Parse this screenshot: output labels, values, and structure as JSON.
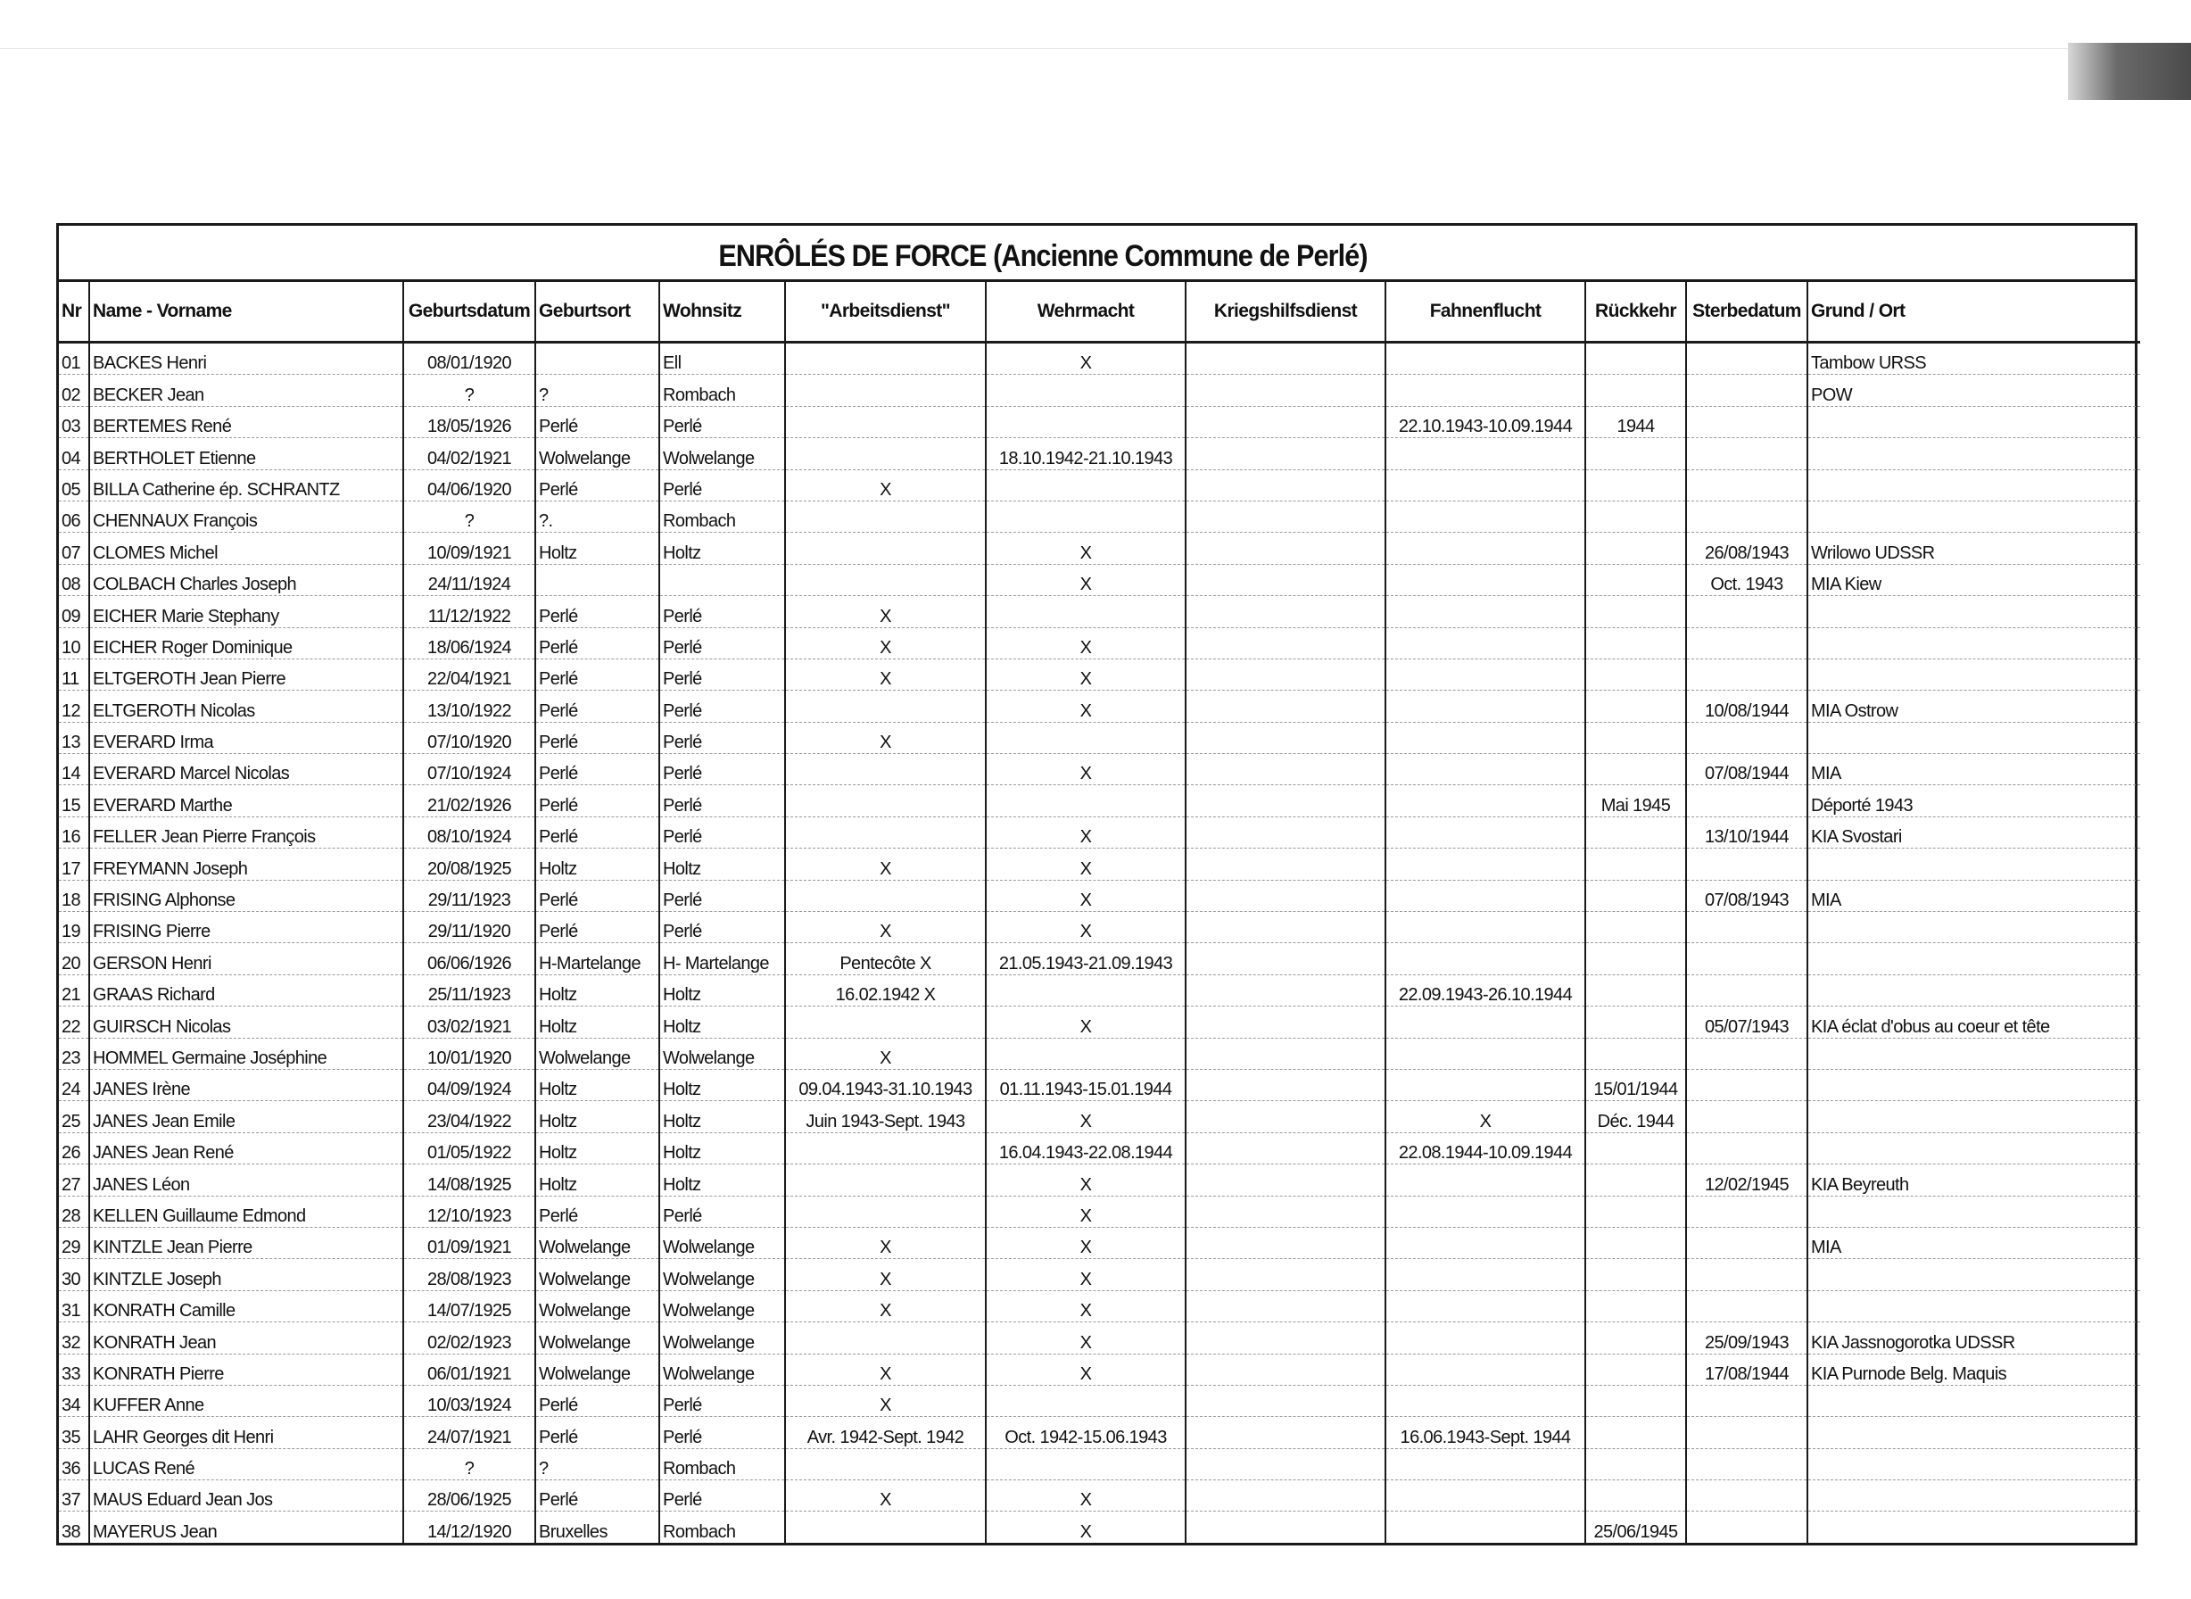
{
  "title": "ENRÔLÉS DE FORCE  (Ancienne Commune de Perlé)",
  "columns": [
    "Nr",
    "Name - Vorname",
    "Geburtsdatum",
    "Geburtsort",
    "Wohnsitz",
    "\"Arbeitsdienst\"",
    "Wehrmacht",
    "Kriegshilfsdienst",
    "Fahnenflucht",
    "Rückkehr",
    "Sterbedatum",
    "Grund / Ort"
  ],
  "rows": [
    [
      "01",
      "BACKES Henri",
      "08/01/1920",
      "",
      "Ell",
      "",
      "X",
      "",
      "",
      "",
      "",
      "Tambow URSS"
    ],
    [
      "02",
      "BECKER Jean",
      "?",
      "?",
      "Rombach",
      "",
      "",
      "",
      "",
      "",
      "",
      "POW"
    ],
    [
      "03",
      "BERTEMES René",
      "18/05/1926",
      "Perlé",
      "Perlé",
      "",
      "",
      "",
      "22.10.1943-10.09.1944",
      "1944",
      "",
      ""
    ],
    [
      "04",
      "BERTHOLET Etienne",
      "04/02/1921",
      "Wolwelange",
      "Wolwelange",
      "",
      "18.10.1942-21.10.1943",
      "",
      "",
      "",
      "",
      ""
    ],
    [
      "05",
      "BILLA Catherine ép. SCHRANTZ",
      "04/06/1920",
      "Perlé",
      "Perlé",
      "X",
      "",
      "",
      "",
      "",
      "",
      ""
    ],
    [
      "06",
      "CHENNAUX François",
      "?",
      "?.",
      "Rombach",
      "",
      "",
      "",
      "",
      "",
      "",
      ""
    ],
    [
      "07",
      "CLOMES Michel",
      "10/09/1921",
      "Holtz",
      "Holtz",
      "",
      "X",
      "",
      "",
      "",
      "26/08/1943",
      "Wrilowo UDSSR"
    ],
    [
      "08",
      "COLBACH Charles Joseph",
      "24/11/1924",
      "",
      "",
      "",
      "X",
      "",
      "",
      "",
      "Oct. 1943",
      "MIA Kiew"
    ],
    [
      "09",
      "EICHER Marie Stephany",
      "11/12/1922",
      "Perlé",
      "Perlé",
      "X",
      "",
      "",
      "",
      "",
      "",
      ""
    ],
    [
      "10",
      "EICHER Roger Dominique",
      "18/06/1924",
      "Perlé",
      "Perlé",
      "X",
      "X",
      "",
      "",
      "",
      "",
      ""
    ],
    [
      "11",
      "ELTGEROTH Jean Pierre",
      "22/04/1921",
      "Perlé",
      "Perlé",
      "X",
      "X",
      "",
      "",
      "",
      "",
      ""
    ],
    [
      "12",
      "ELTGEROTH Nicolas",
      "13/10/1922",
      "Perlé",
      "Perlé",
      "",
      "X",
      "",
      "",
      "",
      "10/08/1944",
      "MIA Ostrow"
    ],
    [
      "13",
      "EVERARD Irma",
      "07/10/1920",
      "Perlé",
      "Perlé",
      "X",
      "",
      "",
      "",
      "",
      "",
      ""
    ],
    [
      "14",
      "EVERARD Marcel Nicolas",
      "07/10/1924",
      "Perlé",
      "Perlé",
      "",
      "X",
      "",
      "",
      "",
      "07/08/1944",
      "MIA"
    ],
    [
      "15",
      "EVERARD Marthe",
      "21/02/1926",
      "Perlé",
      "Perlé",
      "",
      "",
      "",
      "",
      "Mai 1945",
      "",
      "Déporté 1943"
    ],
    [
      "16",
      "FELLER Jean Pierre François",
      "08/10/1924",
      "Perlé",
      "Perlé",
      "",
      "X",
      "",
      "",
      "",
      "13/10/1944",
      "KIA Svostari"
    ],
    [
      "17",
      "FREYMANN Joseph",
      "20/08/1925",
      "Holtz",
      "Holtz",
      "X",
      "X",
      "",
      "",
      "",
      "",
      ""
    ],
    [
      "18",
      "FRISING Alphonse",
      "29/11/1923",
      "Perlé",
      "Perlé",
      "",
      "X",
      "",
      "",
      "",
      "07/08/1943",
      "MIA"
    ],
    [
      "19",
      "FRISING Pierre",
      "29/11/1920",
      "Perlé",
      "Perlé",
      "X",
      "X",
      "",
      "",
      "",
      "",
      ""
    ],
    [
      "20",
      "GERSON Henri",
      "06/06/1926",
      "H-Martelange",
      "H- Martelange",
      "Pentecôte X",
      "21.05.1943-21.09.1943",
      "",
      "",
      "",
      "",
      ""
    ],
    [
      "21",
      "GRAAS Richard",
      "25/11/1923",
      "Holtz",
      "Holtz",
      "16.02.1942 X",
      "",
      "",
      "22.09.1943-26.10.1944",
      "",
      "",
      ""
    ],
    [
      "22",
      "GUIRSCH Nicolas",
      "03/02/1921",
      "Holtz",
      "Holtz",
      "",
      "X",
      "",
      "",
      "",
      "05/07/1943",
      "KIA éclat d'obus au coeur et tête"
    ],
    [
      "23",
      "HOMMEL Germaine Joséphine",
      "10/01/1920",
      "Wolwelange",
      "Wolwelange",
      "X",
      "",
      "",
      "",
      "",
      "",
      ""
    ],
    [
      "24",
      "JANES Irène",
      "04/09/1924",
      "Holtz",
      "Holtz",
      "09.04.1943-31.10.1943",
      "01.11.1943-15.01.1944",
      "",
      "",
      "15/01/1944",
      "",
      ""
    ],
    [
      "25",
      "JANES Jean Emile",
      "23/04/1922",
      "Holtz",
      "Holtz",
      "Juin 1943-Sept. 1943",
      "X",
      "",
      "X",
      "Déc. 1944",
      "",
      ""
    ],
    [
      "26",
      "JANES Jean René",
      "01/05/1922",
      "Holtz",
      "Holtz",
      "",
      "16.04.1943-22.08.1944",
      "",
      "22.08.1944-10.09.1944",
      "",
      "",
      ""
    ],
    [
      "27",
      "JANES Léon",
      "14/08/1925",
      "Holtz",
      "Holtz",
      "",
      "X",
      "",
      "",
      "",
      "12/02/1945",
      "KIA Beyreuth"
    ],
    [
      "28",
      "KELLEN Guillaume Edmond",
      "12/10/1923",
      "Perlé",
      "Perlé",
      "",
      "X",
      "",
      "",
      "",
      "",
      ""
    ],
    [
      "29",
      "KINTZLE Jean Pierre",
      "01/09/1921",
      "Wolwelange",
      "Wolwelange",
      "X",
      "X",
      "",
      "",
      "",
      "",
      "MIA"
    ],
    [
      "30",
      "KINTZLE Joseph",
      "28/08/1923",
      "Wolwelange",
      "Wolwelange",
      "X",
      "X",
      "",
      "",
      "",
      "",
      ""
    ],
    [
      "31",
      "KONRATH Camille",
      "14/07/1925",
      "Wolwelange",
      "Wolwelange",
      "X",
      "X",
      "",
      "",
      "",
      "",
      ""
    ],
    [
      "32",
      "KONRATH Jean",
      "02/02/1923",
      "Wolwelange",
      "Wolwelange",
      "",
      "X",
      "",
      "",
      "",
      "25/09/1943",
      "KIA Jassnogorotka UDSSR"
    ],
    [
      "33",
      "KONRATH Pierre",
      "06/01/1921",
      "Wolwelange",
      "Wolwelange",
      "X",
      "X",
      "",
      "",
      "",
      "17/08/1944",
      "KIA Purnode Belg. Maquis"
    ],
    [
      "34",
      "KUFFER Anne",
      "10/03/1924",
      "Perlé",
      "Perlé",
      "X",
      "",
      "",
      "",
      "",
      "",
      ""
    ],
    [
      "35",
      "LAHR Georges dit Henri",
      "24/07/1921",
      "Perlé",
      "Perlé",
      "Avr. 1942-Sept. 1942",
      "Oct. 1942-15.06.1943",
      "",
      "16.06.1943-Sept. 1944",
      "",
      "",
      ""
    ],
    [
      "36",
      "LUCAS René",
      "?",
      "?",
      "Rombach",
      "",
      "",
      "",
      "",
      "",
      "",
      ""
    ],
    [
      "37",
      "MAUS Eduard Jean Jos",
      "28/06/1925",
      "Perlé",
      "Perlé",
      "X",
      "X",
      "",
      "",
      "",
      "",
      ""
    ],
    [
      "38",
      "MAYERUS Jean",
      "14/12/1920",
      "Bruxelles",
      "Rombach",
      "",
      "X",
      "",
      "",
      "25/06/1945",
      "",
      ""
    ]
  ]
}
